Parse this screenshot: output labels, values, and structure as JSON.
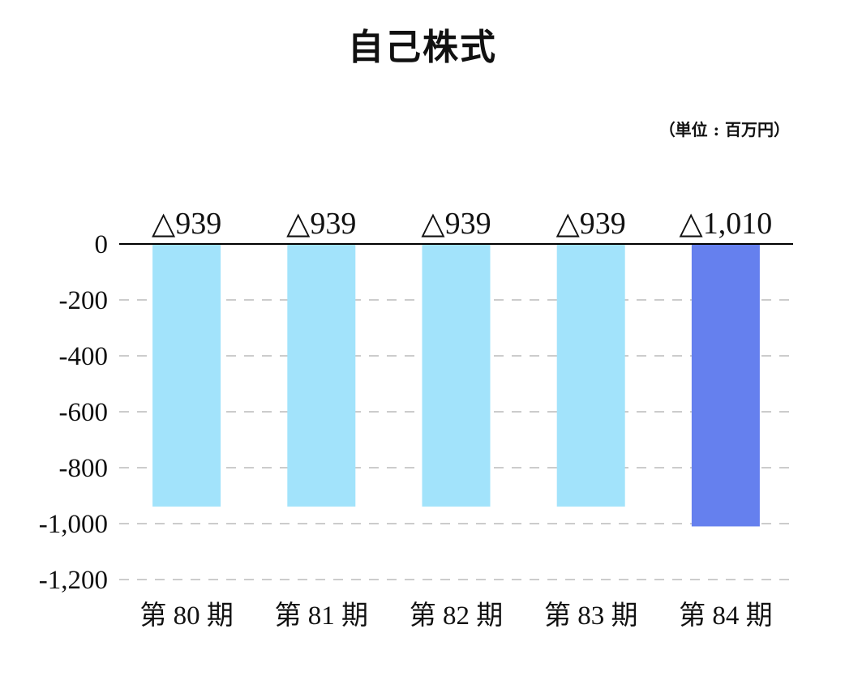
{
  "chart_data": {
    "type": "bar",
    "title": "自己株式",
    "unit": "（単位 : 百万円）",
    "categories": [
      "第 80 期",
      "第 81 期",
      "第 82 期",
      "第 83 期",
      "第 84 期"
    ],
    "values": [
      -939,
      -939,
      -939,
      -939,
      -1010
    ],
    "value_labels": [
      "△939",
      "△939",
      "△939",
      "△939",
      "△1,010"
    ],
    "bar_colors": [
      "#a2e3fb",
      "#a2e3fb",
      "#a2e3fb",
      "#a2e3fb",
      "#6580ee"
    ],
    "ylim": [
      -1200,
      0
    ],
    "yticks": [
      0,
      -200,
      -400,
      -600,
      -800,
      -1000,
      -1200
    ],
    "ytick_labels": [
      "0",
      "-200",
      "-400",
      "-600",
      "-800",
      "-1,000",
      "-1,200"
    ],
    "grid": true,
    "zero_line_color": "#000000",
    "grid_color": "#cccccc"
  }
}
